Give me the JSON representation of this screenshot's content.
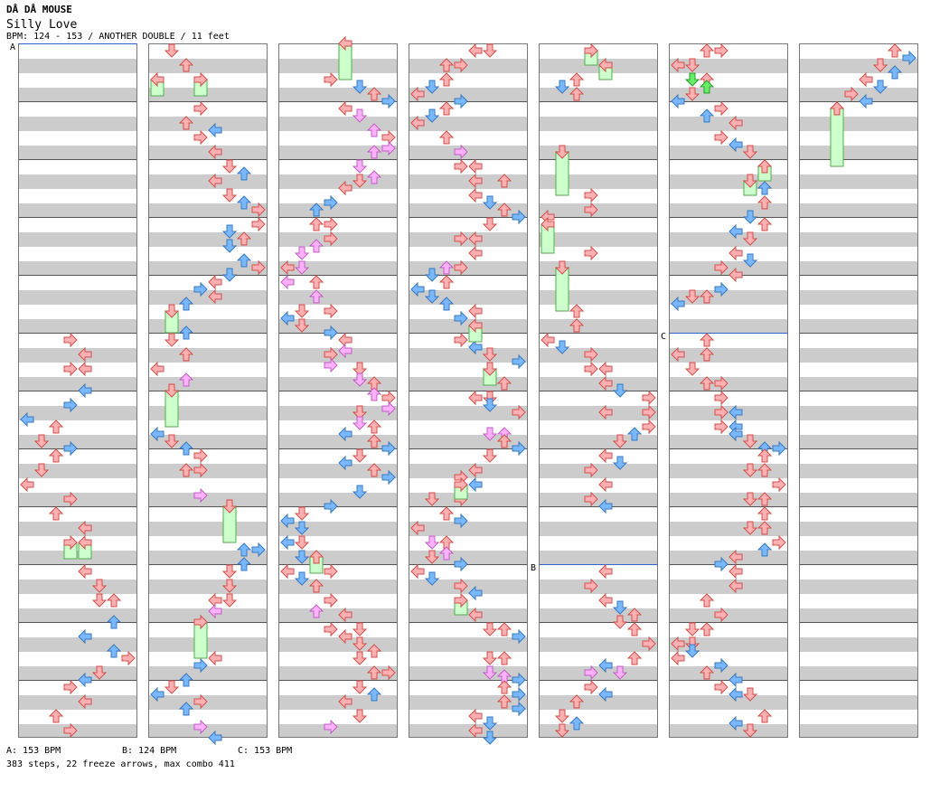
{
  "header": {
    "artist": "DÅ DÅ MOUSE",
    "title": "Silly Love",
    "info": "BPM: 124 - 153 / ANOTHER DOUBLE / 11 feet"
  },
  "segments": {
    "a": "A",
    "b": "B",
    "c": "C"
  },
  "footer": {
    "bpm_a": "A: 153 BPM",
    "bpm_b": "B: 124 BPM",
    "bpm_c": "C: 153 BPM",
    "stats": "383 steps, 22 freeze arrows, max combo 411"
  },
  "colors": {
    "red_fill": "#ffb0b0",
    "red_stroke": "#d05050",
    "blue_fill": "#79b8ff",
    "blue_stroke": "#3a78c0",
    "pink_fill": "#ffb0ff",
    "pink_stroke": "#c060c0",
    "green_fill": "#66ee66",
    "green_stroke": "#2a9a2a",
    "freeze_fill": "#ccffcc",
    "freeze_stroke": "#55aa55"
  },
  "icons": {
    "note": "arrow-icon",
    "freeze": "freeze-arrow-icon"
  }
}
